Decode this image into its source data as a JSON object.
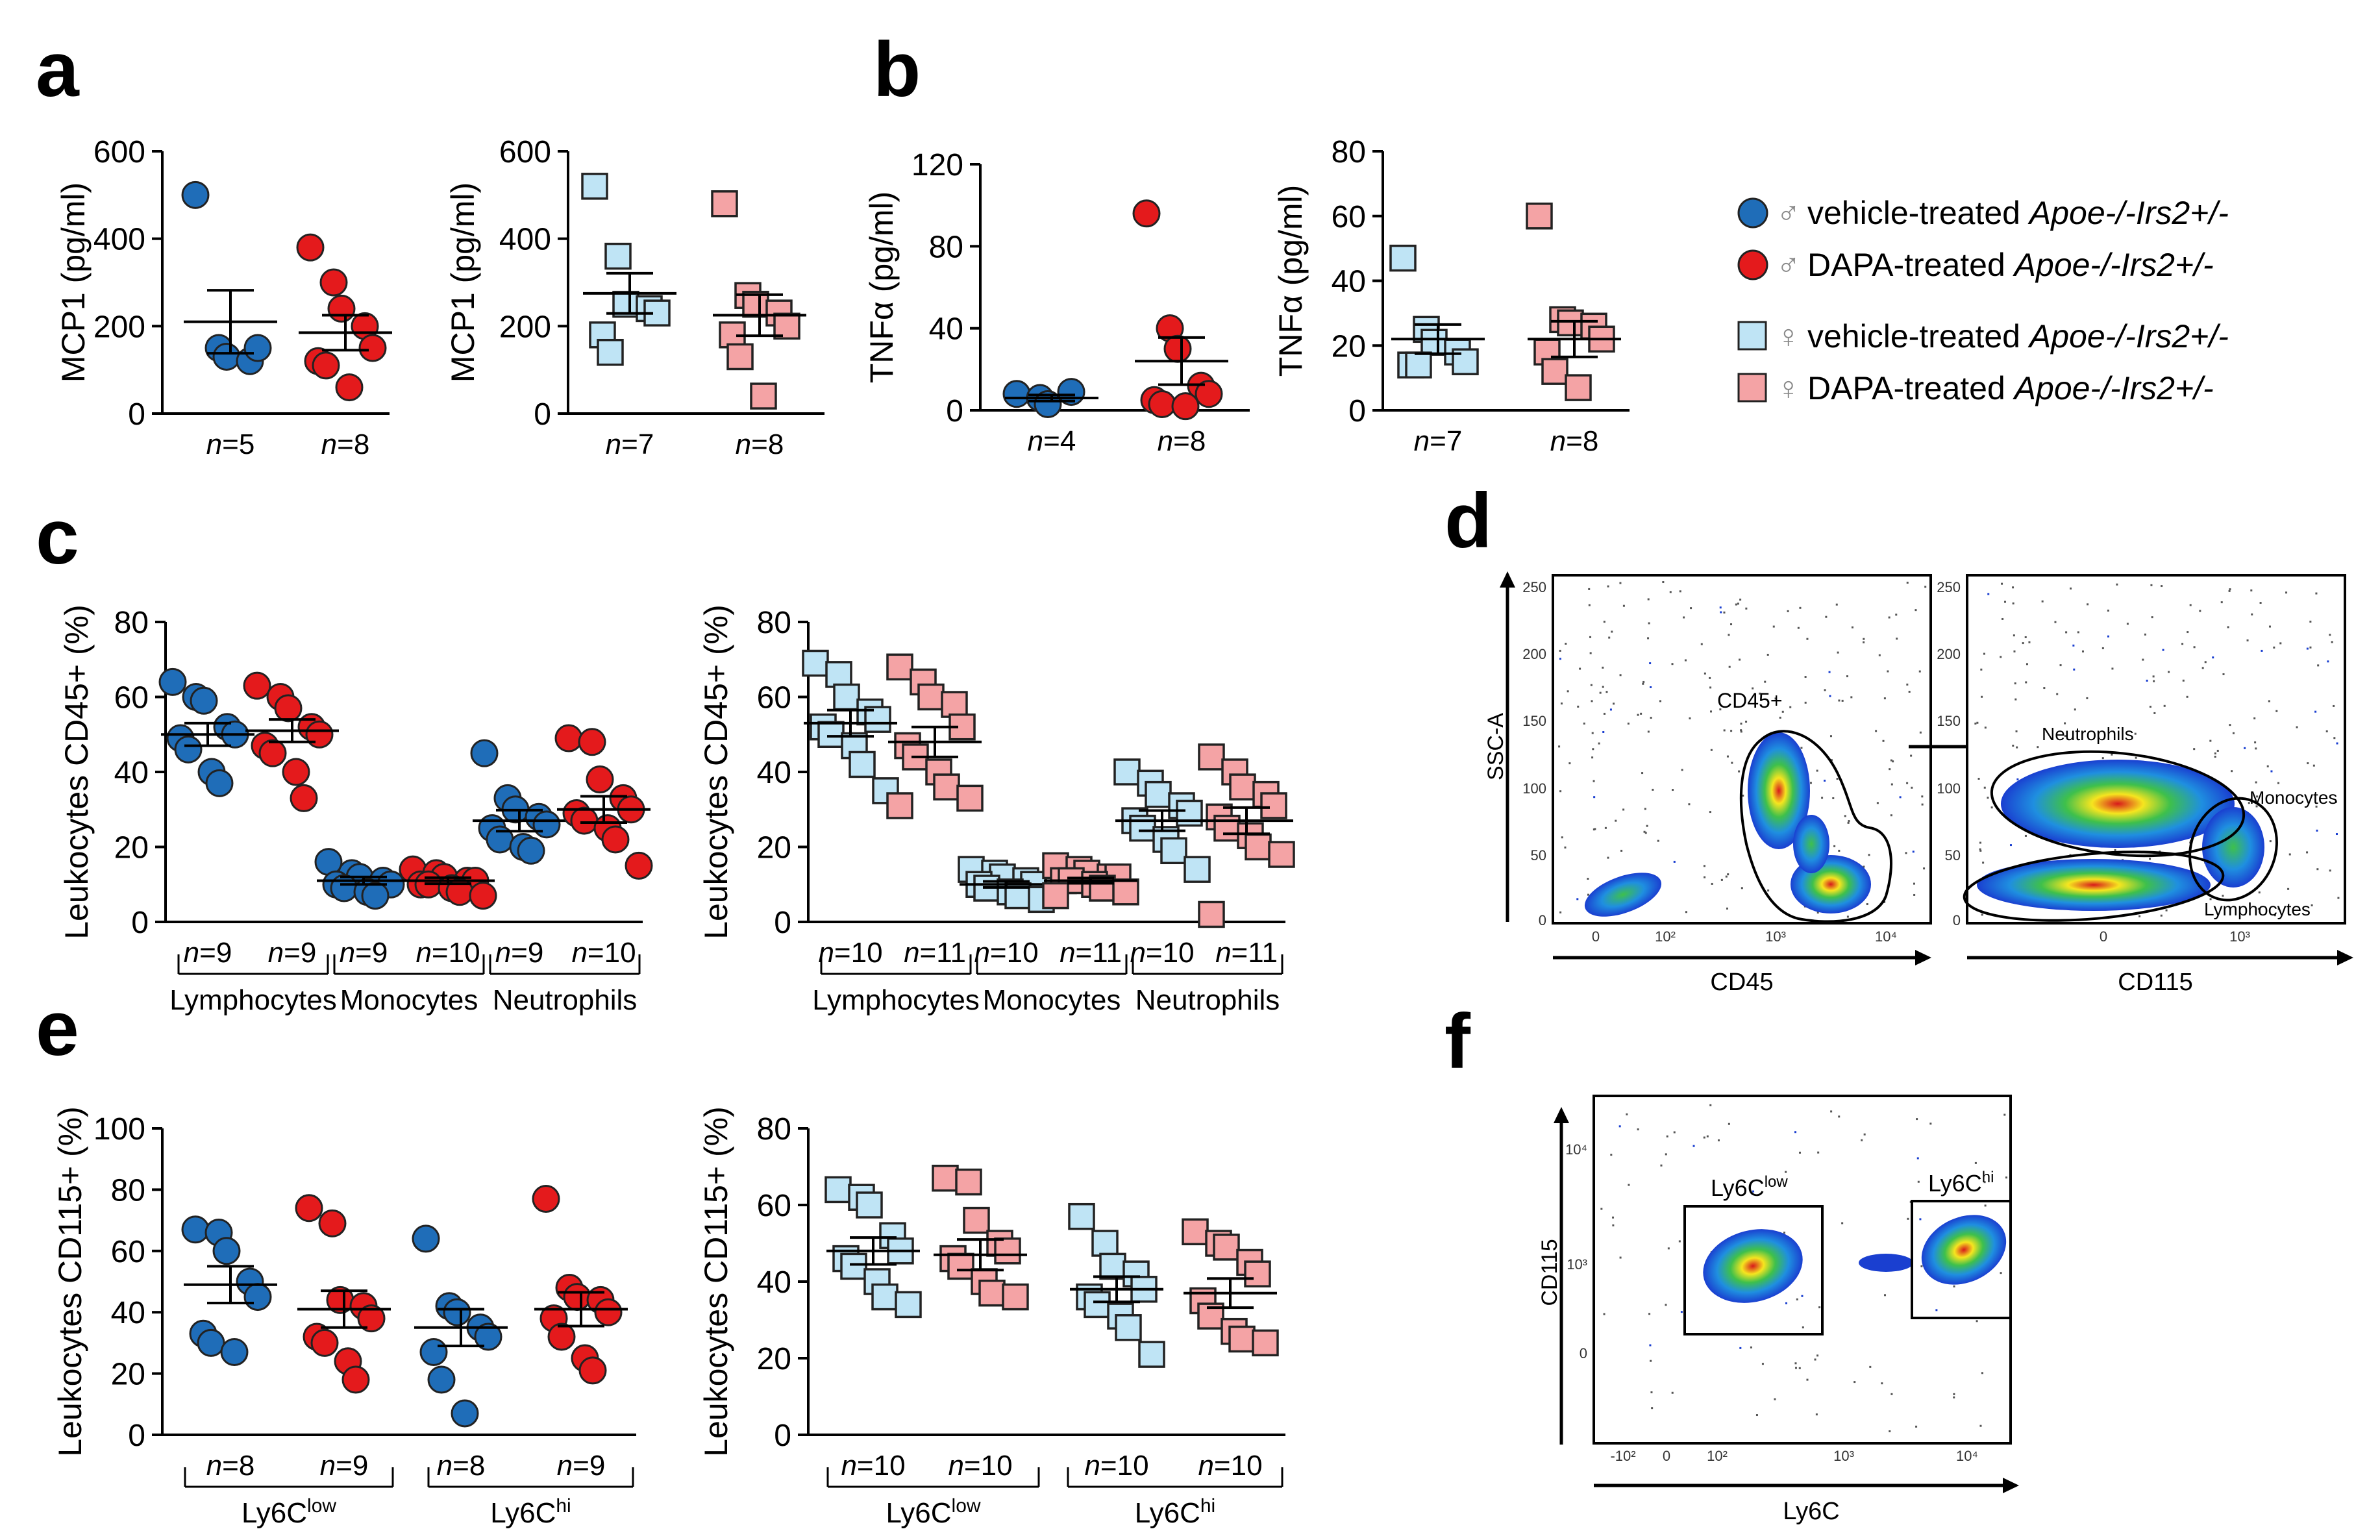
{
  "legend": {
    "items": [
      {
        "symbol": "♂",
        "label": "vehicle-treated ",
        "genotype": "Apoe-/-Irs2+/-",
        "shape": "circle",
        "color": "#1f6db8"
      },
      {
        "symbol": "♂",
        "label": "DAPA-treated ",
        "genotype": "Apoe-/-Irs2+/-",
        "shape": "circle",
        "color": "#e41a1c"
      },
      {
        "symbol": "♀",
        "label": "vehicle-treated ",
        "genotype": "Apoe-/-Irs2+/-",
        "shape": "square",
        "color": "#bfe4f5"
      },
      {
        "symbol": "♀",
        "label": "DAPA-treated ",
        "genotype": "Apoe-/-Irs2+/-",
        "shape": "square",
        "color": "#f4a3a5"
      }
    ]
  },
  "chart_data": [
    {
      "id": "a1",
      "panel_letter": "a",
      "type": "scatter",
      "ylabel": "MCP1 (pg/ml)",
      "ylim": [
        0,
        600
      ],
      "yticks": [
        "0",
        "200",
        "400",
        "600"
      ],
      "groups": [
        {
          "label": "n=5",
          "shape": "circle",
          "color": "#1f6db8",
          "values": [
            500,
            150,
            130,
            120,
            150
          ],
          "mean": 210,
          "sem": 72
        },
        {
          "label": "n=8",
          "shape": "circle",
          "color": "#e41a1c",
          "values": [
            380,
            300,
            240,
            200,
            150,
            120,
            110,
            60
          ],
          "mean": 185,
          "sem": 40
        }
      ]
    },
    {
      "id": "a2",
      "type": "scatter",
      "ylabel": "MCP1 (pg/ml)",
      "ylim": [
        0,
        600
      ],
      "yticks": [
        "0",
        "200",
        "400",
        "600"
      ],
      "groups": [
        {
          "label": "n=7",
          "shape": "square",
          "color": "#bfe4f5",
          "values": [
            520,
            360,
            250,
            240,
            230,
            180,
            140
          ],
          "mean": 275,
          "sem": 46
        },
        {
          "label": "n=8",
          "shape": "square",
          "color": "#f4a3a5",
          "values": [
            480,
            270,
            250,
            230,
            200,
            180,
            130,
            40
          ],
          "mean": 225,
          "sem": 47
        }
      ]
    },
    {
      "id": "b1",
      "panel_letter": "b",
      "type": "scatter",
      "ylabel": "TNFα (pg/ml)",
      "ylim": [
        0,
        120
      ],
      "yticks": [
        "0",
        "40",
        "80",
        "120"
      ],
      "groups": [
        {
          "label": "n=4",
          "shape": "circle",
          "color": "#1f6db8",
          "values": [
            8,
            6,
            3,
            9
          ],
          "mean": 6,
          "sem": 1.5
        },
        {
          "label": "n=8",
          "shape": "circle",
          "color": "#e41a1c",
          "values": [
            96,
            40,
            30,
            12,
            8,
            5,
            3,
            2
          ],
          "mean": 24,
          "sem": 11.5
        }
      ]
    },
    {
      "id": "b2",
      "type": "scatter",
      "ylabel": "TNFα (pg/ml)",
      "ylim": [
        0,
        80
      ],
      "yticks": [
        "0",
        "20",
        "40",
        "60",
        "80"
      ],
      "groups": [
        {
          "label": "n=7",
          "shape": "square",
          "color": "#bfe4f5",
          "values": [
            47,
            25,
            21,
            18,
            15,
            14,
            14
          ],
          "mean": 22,
          "sem": 4.5
        },
        {
          "label": "n=8",
          "shape": "square",
          "color": "#f4a3a5",
          "values": [
            60,
            28,
            27,
            26,
            22,
            18,
            12,
            7
          ],
          "mean": 22,
          "sem": 5.5
        }
      ]
    },
    {
      "id": "c1",
      "panel_letter": "c",
      "type": "scatter",
      "ylabel": "Leukocytes CD45+ (%)",
      "ylim": [
        0,
        80
      ],
      "yticks": [
        "0",
        "20",
        "40",
        "60",
        "80"
      ],
      "categories": [
        "Lymphocytes",
        "Monocytes",
        "Neutrophils"
      ],
      "groups": [
        {
          "label": "n=9",
          "shape": "circle",
          "color": "#1f6db8",
          "values": [
            64,
            60,
            59,
            52,
            50,
            49,
            46,
            40,
            37
          ],
          "mean": 50,
          "sem": 3
        },
        {
          "label": "n=9",
          "shape": "circle",
          "color": "#e41a1c",
          "values": [
            63,
            60,
            57,
            52,
            50,
            47,
            45,
            40,
            33
          ],
          "mean": 51,
          "sem": 3
        },
        {
          "label": "n=9",
          "shape": "circle",
          "color": "#1f6db8",
          "values": [
            16,
            13,
            12,
            11,
            10,
            10,
            9,
            8,
            7
          ],
          "mean": 11,
          "sem": 1
        },
        {
          "label": "n=10",
          "shape": "circle",
          "color": "#e41a1c",
          "values": [
            14,
            13,
            12,
            11,
            11,
            10,
            10,
            9,
            8,
            7
          ],
          "mean": 11,
          "sem": 0.8
        },
        {
          "label": "n=9",
          "shape": "circle",
          "color": "#1f6db8",
          "values": [
            45,
            33,
            30,
            28,
            26,
            25,
            22,
            20,
            19
          ],
          "mean": 27,
          "sem": 2.8
        },
        {
          "label": "n=10",
          "shape": "circle",
          "color": "#e41a1c",
          "values": [
            49,
            48,
            38,
            33,
            30,
            29,
            27,
            25,
            22,
            15
          ],
          "mean": 30,
          "sem": 3.5
        }
      ]
    },
    {
      "id": "c2",
      "type": "scatter",
      "ylabel": "Leukocytes CD45+ (%)",
      "ylim": [
        0,
        80
      ],
      "yticks": [
        "0",
        "20",
        "40",
        "60",
        "80"
      ],
      "categories": [
        "Lymphocytes",
        "Monocytes",
        "Neutrophils"
      ],
      "groups": [
        {
          "label": "n=10",
          "shape": "square",
          "color": "#bfe4f5",
          "values": [
            69,
            66,
            60,
            56,
            54,
            52,
            50,
            47,
            42,
            35
          ],
          "mean": 53,
          "sem": 3.5
        },
        {
          "label": "n=11",
          "shape": "square",
          "color": "#f4a3a5",
          "values": [
            68,
            64,
            60,
            58,
            52,
            47,
            44,
            40,
            36,
            33,
            31
          ],
          "mean": 48,
          "sem": 4
        },
        {
          "label": "n=10",
          "shape": "square",
          "color": "#bfe4f5",
          "values": [
            14,
            13,
            12,
            11,
            10,
            10,
            9,
            8,
            7,
            6
          ],
          "mean": 10,
          "sem": 0.8
        },
        {
          "label": "n=11",
          "shape": "square",
          "color": "#f4a3a5",
          "values": [
            15,
            14,
            13,
            12,
            12,
            11,
            11,
            10,
            9,
            8,
            7
          ],
          "mean": 11,
          "sem": 0.7
        },
        {
          "label": "n=10",
          "shape": "square",
          "color": "#bfe4f5",
          "values": [
            40,
            37,
            34,
            31,
            29,
            27,
            25,
            22,
            19,
            14
          ],
          "mean": 27,
          "sem": 2.7
        },
        {
          "label": "n=11",
          "shape": "square",
          "color": "#f4a3a5",
          "values": [
            44,
            40,
            36,
            34,
            31,
            28,
            25,
            23,
            20,
            18,
            2
          ],
          "mean": 27,
          "sem": 3.5
        }
      ]
    },
    {
      "id": "e1",
      "panel_letter": "e",
      "type": "scatter",
      "ylabel": "Leukocytes CD115+ (%)",
      "ylim": [
        0,
        100
      ],
      "yticks": [
        "0",
        "20",
        "40",
        "60",
        "80",
        "100"
      ],
      "categories": [
        "Ly6Clow",
        "Ly6Chi"
      ],
      "groups": [
        {
          "label": "n=8",
          "shape": "circle",
          "color": "#1f6db8",
          "values": [
            67,
            66,
            60,
            50,
            45,
            33,
            30,
            27
          ],
          "mean": 49,
          "sem": 6
        },
        {
          "label": "n=9",
          "shape": "circle",
          "color": "#e41a1c",
          "values": [
            74,
            69,
            44,
            42,
            38,
            32,
            30,
            24,
            18
          ],
          "mean": 41,
          "sem": 6
        },
        {
          "label": "n=8",
          "shape": "circle",
          "color": "#1f6db8",
          "values": [
            64,
            42,
            40,
            35,
            32,
            27,
            18,
            7
          ],
          "mean": 35,
          "sem": 6
        },
        {
          "label": "n=9",
          "shape": "circle",
          "color": "#e41a1c",
          "values": [
            77,
            48,
            45,
            44,
            40,
            38,
            32,
            25,
            21
          ],
          "mean": 41,
          "sem": 5.5
        }
      ]
    },
    {
      "id": "e2",
      "type": "scatter",
      "ylabel": "Leukocytes CD115+ (%)",
      "ylim": [
        0,
        80
      ],
      "yticks": [
        "0",
        "20",
        "40",
        "60",
        "80"
      ],
      "categories": [
        "Ly6Clow",
        "Ly6Chi"
      ],
      "groups": [
        {
          "label": "n=10",
          "shape": "square",
          "color": "#bfe4f5",
          "values": [
            64,
            62,
            60,
            52,
            48,
            46,
            44,
            40,
            36,
            34
          ],
          "mean": 48,
          "sem": 3.5
        },
        {
          "label": "n=10",
          "shape": "square",
          "color": "#f4a3a5",
          "values": [
            67,
            66,
            56,
            50,
            48,
            46,
            44,
            40,
            37,
            36
          ],
          "mean": 47,
          "sem": 4
        },
        {
          "label": "n=10",
          "shape": "square",
          "color": "#bfe4f5",
          "values": [
            57,
            50,
            44,
            42,
            38,
            36,
            34,
            31,
            28,
            21
          ],
          "mean": 38,
          "sem": 3.3
        },
        {
          "label": "n=10",
          "shape": "square",
          "color": "#f4a3a5",
          "values": [
            53,
            50,
            49,
            45,
            42,
            35,
            31,
            27,
            25,
            24
          ],
          "mean": 37,
          "sem": 3.8
        }
      ]
    }
  ],
  "panels": {
    "a": "a",
    "b": "b",
    "c": "c",
    "d": "d",
    "e": "e",
    "f": "f"
  },
  "flow": {
    "d_left": {
      "xlabel": "CD45",
      "ylabel": "SSC-A",
      "gate": "CD45+",
      "xticks": [
        "0",
        "10²",
        "10³",
        "10⁴"
      ],
      "yticks": [
        "0",
        "50",
        "100",
        "150",
        "200",
        "250"
      ]
    },
    "d_right": {
      "xlabel": "CD115",
      "gates": [
        "Neutrophils",
        "Monocytes",
        "Lymphocytes"
      ],
      "xticks": [
        "0",
        "10³"
      ],
      "yticks": [
        "0",
        "50",
        "100",
        "150",
        "200",
        "250"
      ]
    },
    "f": {
      "xlabel": "Ly6C",
      "ylabel": "CD115",
      "gate_low": {
        "base": "Ly6C",
        "sup": "low"
      },
      "gate_hi": {
        "base": "Ly6C",
        "sup": "hi"
      },
      "xticks": [
        "-10²",
        "0",
        "10²",
        "10³",
        "10⁴"
      ],
      "yticks": [
        "0",
        "10³",
        "10⁴"
      ]
    }
  },
  "category_labels": {
    "Lymphocytes": "Lymphocytes",
    "Monocytes": "Monocytes",
    "Neutrophils": "Neutrophils",
    "Ly6C_low": {
      "base": "Ly6C",
      "sup": "low"
    },
    "Ly6C_hi": {
      "base": "Ly6C",
      "sup": "hi"
    }
  }
}
